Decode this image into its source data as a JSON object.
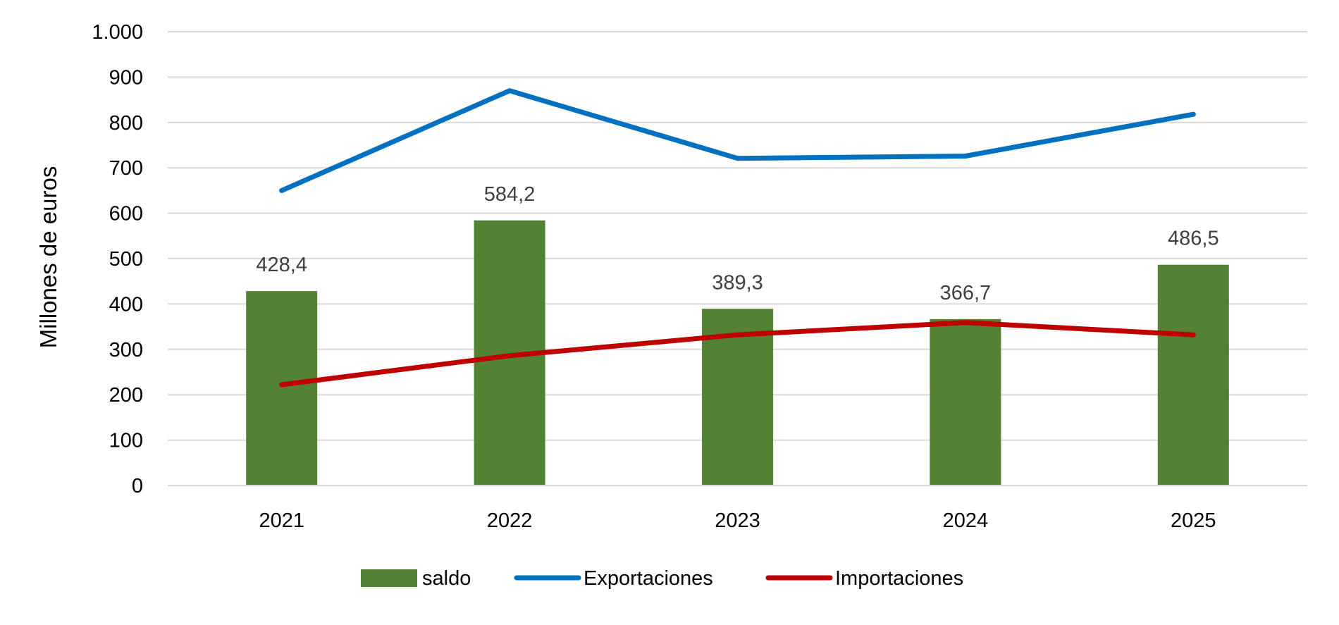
{
  "chart_data": {
    "type": "bar",
    "title": "",
    "xlabel": "",
    "ylabel": "Millones de euros",
    "ylim": [
      0,
      1000
    ],
    "yticks": [
      0,
      100,
      200,
      300,
      400,
      500,
      600,
      700,
      800,
      900,
      1000
    ],
    "ytick_labels": [
      "0",
      "100",
      "200",
      "300",
      "400",
      "500",
      "600",
      "700",
      "800",
      "900",
      "1.000"
    ],
    "grid": true,
    "legend_position": "bottom",
    "categories": [
      "2021",
      "2022",
      "2023",
      "2024",
      "2025"
    ],
    "series": [
      {
        "name": "saldo",
        "type": "bar",
        "color": "#548235",
        "values": [
          428.4,
          584.2,
          389.3,
          366.7,
          486.5
        ],
        "data_labels": [
          "428,4",
          "584,2",
          "389,3",
          "366,7",
          "486,5"
        ]
      },
      {
        "name": "Exportaciones",
        "type": "line",
        "color": "#0070C0",
        "values": [
          650,
          870,
          721,
          726,
          818
        ]
      },
      {
        "name": "Importaciones",
        "type": "line",
        "color": "#C00000",
        "values": [
          222,
          286,
          332,
          359,
          332
        ]
      }
    ]
  }
}
